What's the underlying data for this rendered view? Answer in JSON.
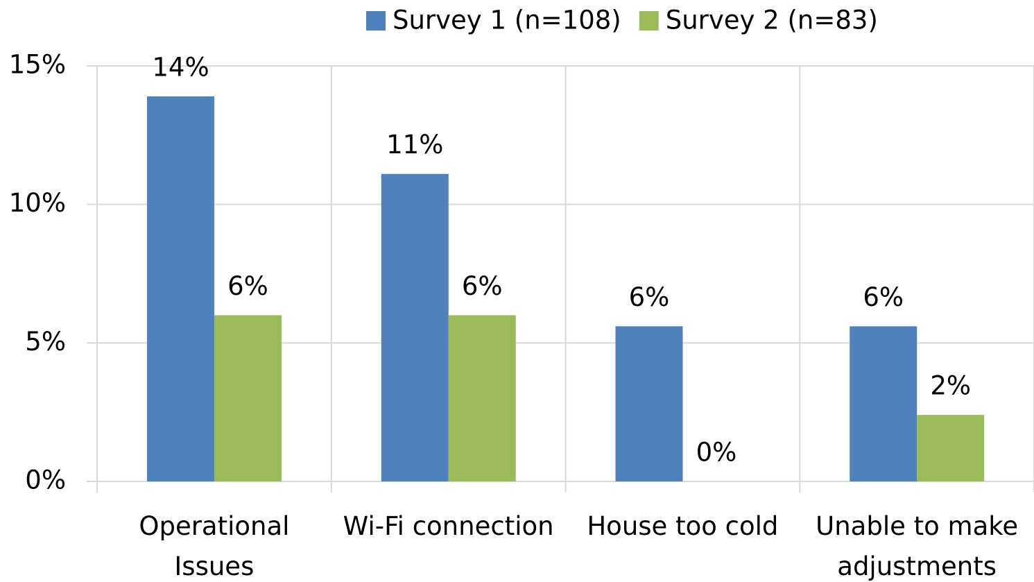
{
  "chart_data": {
    "type": "bar",
    "categories": [
      "Operational Issues",
      "Wi-Fi connection",
      "House too cold",
      "Unable to make adjustments"
    ],
    "series": [
      {
        "name": "Survey 1 (n=108)",
        "color": "#4f81bd",
        "values": [
          13.9,
          11.1,
          5.6,
          5.6
        ],
        "value_labels": [
          "14%",
          "11%",
          "6%",
          "6%"
        ]
      },
      {
        "name": "Survey 2 (n=83)",
        "color": "#9bbb59",
        "values": [
          6.0,
          6.0,
          0,
          2.4
        ],
        "value_labels": [
          "6%",
          "6%",
          "0%",
          "2%"
        ]
      }
    ],
    "ylim": [
      0,
      15
    ],
    "yticks": [
      {
        "value": 0,
        "label": "0%"
      },
      {
        "value": 5,
        "label": "5%"
      },
      {
        "value": 10,
        "label": "10%"
      },
      {
        "value": 15,
        "label": "15%"
      }
    ],
    "grid": true,
    "legend": "top"
  }
}
